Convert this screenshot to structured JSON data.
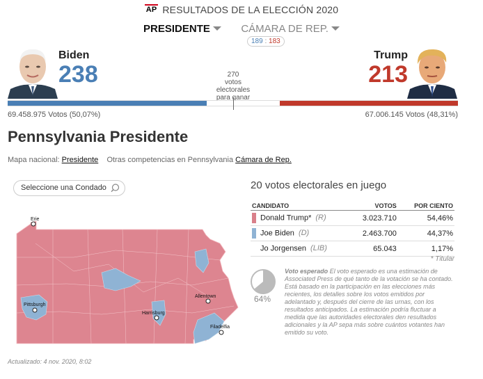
{
  "header": {
    "logo": "AP",
    "title": "RESULTADOS DE LA ELECCIÓN 2020"
  },
  "tabs": [
    {
      "label": "PRESIDENTE",
      "active": true
    },
    {
      "label": "CÁMARA DE REP.",
      "active": false
    }
  ],
  "house_badge": {
    "dem": "189",
    "sep": ":",
    "rep": "183"
  },
  "national": {
    "dem": {
      "name": "Biden",
      "electoral_votes": "238",
      "popular": "69.458.975 Votos (50,07%)",
      "color": "#4a7fb5"
    },
    "rep": {
      "name": "Trump",
      "electoral_votes": "213",
      "popular": "67.006.145 Votos (48,31%)",
      "color": "#c0392b"
    },
    "to_win": [
      "270",
      "votos",
      "electorales",
      "para ganar"
    ]
  },
  "race": {
    "title": "Pennsylvania Presidente",
    "national_map_label": "Mapa nacional:",
    "national_map_link": "Presidente",
    "other_label": "Otras competencias en Pennsylvania",
    "other_link": "Cámara de Rep."
  },
  "county_select": {
    "placeholder": "Seleccione una Condado"
  },
  "map": {
    "cities": [
      "Erie",
      "Pittsburgh",
      "Harrisburg",
      "Allentown",
      "Filadelfia"
    ]
  },
  "results": {
    "title": "20 votos electorales en juego",
    "headers": {
      "candidate": "CANDIDATO",
      "votes": "VOTOS",
      "pct": "POR CIENTO"
    },
    "rows": [
      {
        "name": "Donald Trump*",
        "party": "(R)",
        "votes": "3.023.710",
        "pct": "54,46%",
        "color": "#d9808a"
      },
      {
        "name": "Joe Biden",
        "party": "(D)",
        "votes": "2.463.700",
        "pct": "44,37%",
        "color": "#8fb3d4"
      },
      {
        "name": "Jo Jorgensen",
        "party": "(LIB)",
        "votes": "65.043",
        "pct": "1,17%",
        "color": ""
      }
    ],
    "winner_note": "* Titular"
  },
  "expected_vote": {
    "percent": 64,
    "label": "64%",
    "heading": "Voto esperado",
    "text": "El voto esperado es una estimación de Associated Press de qué tanto de la votación se ha contado. Está basado en la participación en las elecciones más recientes, los detalles sobre los votos emitidos por adelantado y, después del cierre de las urnas, con los resultados anticipados. La estimación podría fluctuar a medida que las autoridades electorales den resultados adicionales y la AP sepa más sobre cuántos votantes han emitido su voto."
  },
  "updated": "Actualizado: 4 nov. 2020, 8:02"
}
